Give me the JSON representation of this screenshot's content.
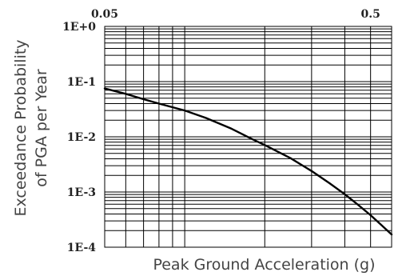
{
  "chart_data": {
    "type": "line",
    "title": "",
    "xlabel": "Peak Ground Acceleration (g)",
    "ylabel_lines": [
      "Exceedance Probability",
      "of PGA per Year"
    ],
    "x_scale": "log",
    "y_scale": "log",
    "xlim": [
      0.05,
      0.6
    ],
    "ylim": [
      0.0001,
      1
    ],
    "x_tick_labels": [
      {
        "value": 0.05,
        "label": "0.05"
      },
      {
        "value": 0.5,
        "label": "0.5"
      }
    ],
    "y_tick_labels": [
      {
        "value": 1,
        "label": "1E+0"
      },
      {
        "value": 0.1,
        "label": "1E-1"
      },
      {
        "value": 0.01,
        "label": "1E-2"
      },
      {
        "value": 0.001,
        "label": "1E-3"
      },
      {
        "value": 0.0001,
        "label": "1E-4"
      }
    ],
    "grid": true,
    "series": [
      {
        "x": [
          0.05,
          0.06,
          0.07,
          0.08,
          0.1,
          0.12,
          0.15,
          0.18,
          0.2,
          0.25,
          0.3,
          0.35,
          0.4,
          0.45,
          0.5,
          0.55,
          0.6
        ],
        "y": [
          0.075,
          0.06,
          0.048,
          0.04,
          0.03,
          0.022,
          0.014,
          0.009,
          0.0071,
          0.0041,
          0.0024,
          0.00145,
          0.00091,
          0.00058,
          0.00038,
          0.00025,
          0.00017
        ]
      }
    ]
  }
}
